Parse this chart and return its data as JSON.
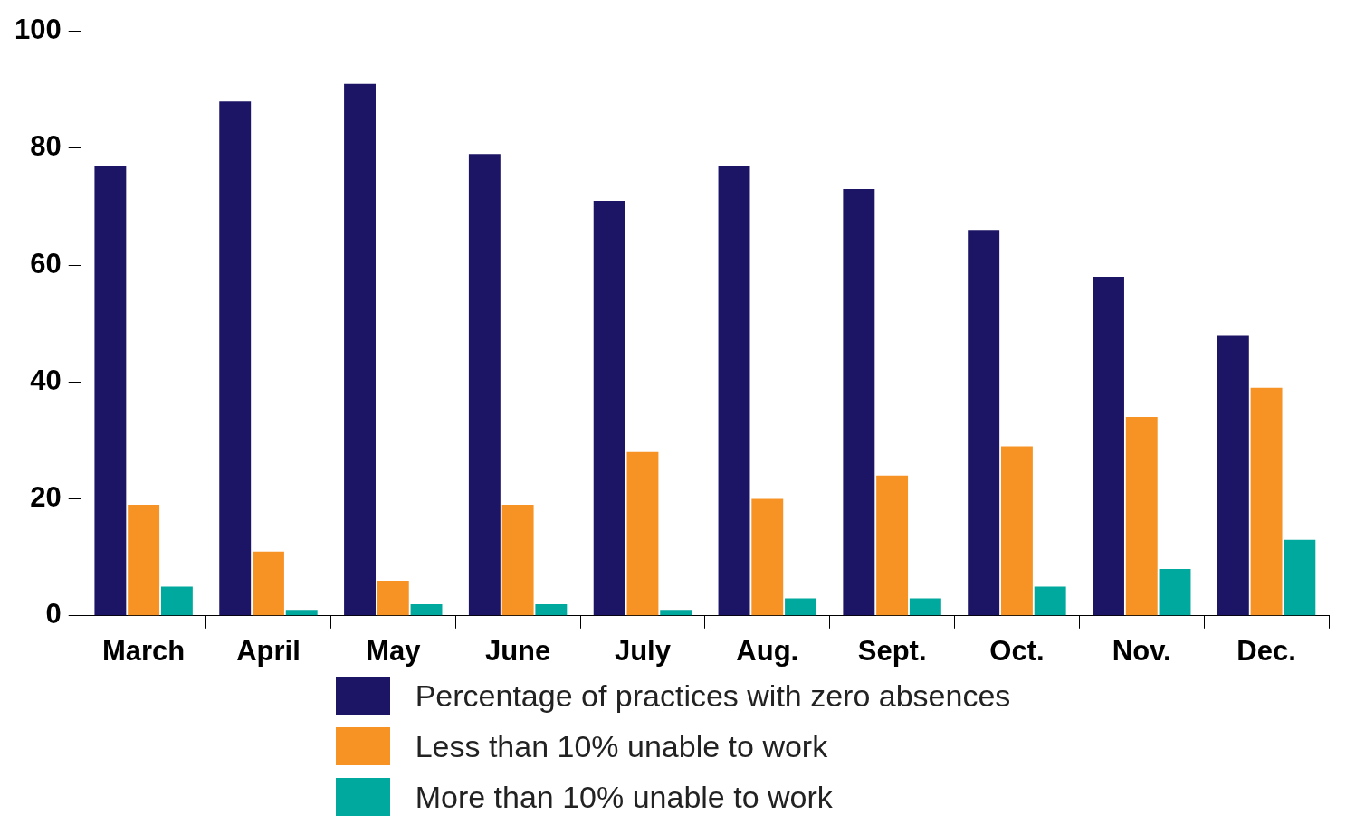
{
  "chart_data": {
    "type": "bar",
    "categories": [
      "March",
      "April",
      "May",
      "June",
      "July",
      "Aug.",
      "Sept.",
      "Oct.",
      "Nov.",
      "Dec."
    ],
    "series": [
      {
        "name": "Percentage of practices with zero absences",
        "color": "#1c1464",
        "values": [
          77,
          88,
          91,
          79,
          71,
          77,
          73,
          66,
          58,
          48
        ]
      },
      {
        "name": "Less than 10% unable to work",
        "color": "#f79324",
        "values": [
          19,
          11,
          6,
          19,
          28,
          20,
          24,
          29,
          34,
          39
        ]
      },
      {
        "name": "More than 10% unable to work",
        "color": "#00a99d",
        "values": [
          5,
          1,
          2,
          2,
          1,
          3,
          3,
          5,
          8,
          13
        ]
      }
    ],
    "ylim": [
      0,
      100
    ],
    "yticks": [
      0,
      20,
      40,
      60,
      80,
      100
    ],
    "grid": false,
    "legend": "bottom"
  }
}
